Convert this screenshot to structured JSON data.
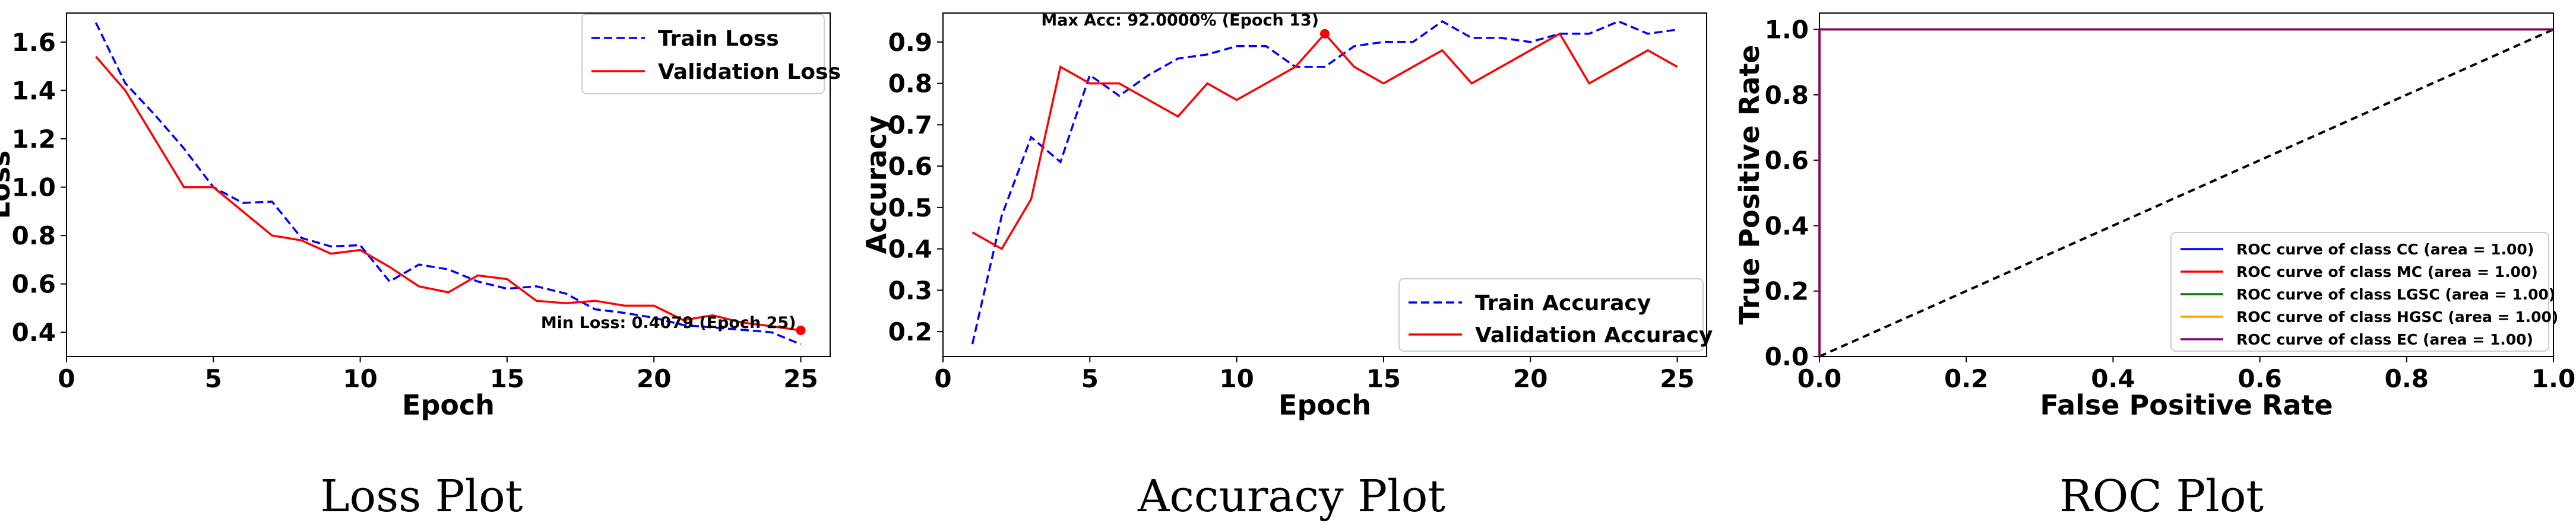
{
  "chart_data": [
    {
      "type": "line",
      "caption": "Loss Plot",
      "xlabel": "Epoch",
      "ylabel": "Loss",
      "xlim": [
        0,
        26
      ],
      "ylim": [
        0.3,
        1.72
      ],
      "xticks": [
        0,
        5,
        10,
        15,
        20,
        25
      ],
      "yticks": [
        0.4,
        0.6,
        0.8,
        1.0,
        1.2,
        1.4,
        1.6
      ],
      "x": [
        1,
        2,
        3,
        4,
        5,
        6,
        7,
        8,
        9,
        10,
        11,
        12,
        13,
        14,
        15,
        16,
        17,
        18,
        19,
        20,
        21,
        22,
        23,
        24,
        25
      ],
      "series": [
        {
          "name": "Train Loss",
          "color": "#0000ff",
          "dash": true,
          "values": [
            1.68,
            1.43,
            1.3,
            1.16,
            1.0,
            0.935,
            0.94,
            0.79,
            0.755,
            0.76,
            0.61,
            0.68,
            0.66,
            0.61,
            0.58,
            0.59,
            0.56,
            0.495,
            0.48,
            0.46,
            0.43,
            0.42,
            0.41,
            0.4,
            0.35
          ]
        },
        {
          "name": "Validation Loss",
          "color": "#ff0000",
          "dash": false,
          "values": [
            1.54,
            1.4,
            1.2,
            1.0,
            1.0,
            0.9,
            0.8,
            0.78,
            0.725,
            0.74,
            0.67,
            0.59,
            0.565,
            0.635,
            0.62,
            0.53,
            0.52,
            0.53,
            0.51,
            0.51,
            0.45,
            0.47,
            0.44,
            0.425,
            0.4079
          ]
        }
      ],
      "annotation": {
        "text": "Min Loss: 0.4079 (Epoch 25)",
        "x": 25,
        "y": 0.4079,
        "color": "#ff0000"
      },
      "legend": "top-right"
    },
    {
      "type": "line",
      "caption": "Accuracy Plot",
      "xlabel": "Epoch",
      "ylabel": "Accuracy",
      "xlim": [
        0,
        26
      ],
      "ylim": [
        0.14,
        0.97
      ],
      "xticks": [
        0,
        5,
        10,
        15,
        20,
        25
      ],
      "yticks": [
        0.2,
        0.3,
        0.4,
        0.5,
        0.6,
        0.7,
        0.8,
        0.9
      ],
      "x": [
        1,
        2,
        3,
        4,
        5,
        6,
        7,
        8,
        9,
        10,
        11,
        12,
        13,
        14,
        15,
        16,
        17,
        18,
        19,
        20,
        21,
        22,
        23,
        24,
        25
      ],
      "series": [
        {
          "name": "Train Accuracy",
          "color": "#0000ff",
          "dash": true,
          "values": [
            0.17,
            0.48,
            0.67,
            0.61,
            0.82,
            0.77,
            0.82,
            0.86,
            0.87,
            0.89,
            0.89,
            0.84,
            0.84,
            0.89,
            0.9,
            0.9,
            0.95,
            0.91,
            0.91,
            0.9,
            0.92,
            0.92,
            0.95,
            0.92,
            0.93
          ]
        },
        {
          "name": "Validation Accuracy",
          "color": "#ff0000",
          "dash": false,
          "values": [
            0.44,
            0.4,
            0.52,
            0.84,
            0.8,
            0.8,
            0.76,
            0.72,
            0.8,
            0.76,
            0.8,
            0.84,
            0.92,
            0.84,
            0.8,
            0.84,
            0.88,
            0.8,
            0.84,
            0.88,
            0.92,
            0.8,
            0.84,
            0.88,
            0.84
          ]
        }
      ],
      "annotation": {
        "text": "Max Acc: 92.0000% (Epoch 13)",
        "x": 13,
        "y": 0.92,
        "color": "#ff0000"
      },
      "legend": "lower-right"
    },
    {
      "type": "line",
      "caption": "ROC Plot",
      "xlabel": "False Positive Rate",
      "ylabel": "True Positive Rate",
      "xlim": [
        0,
        1
      ],
      "ylim": [
        0,
        1.05
      ],
      "xticks": [
        "0.0",
        "0.2",
        "0.4",
        "0.6",
        "0.8",
        "1.0"
      ],
      "yticks": [
        "0.0",
        "0.2",
        "0.4",
        "0.6",
        "0.8",
        "1.0"
      ],
      "series": [
        {
          "name": "ROC curve of class CC (area = 1.00)",
          "color": "#0000ff",
          "x": [
            0,
            0,
            1
          ],
          "y": [
            0,
            1,
            1
          ]
        },
        {
          "name": "ROC curve of class MC (area = 1.00)",
          "color": "#ff0000",
          "x": [
            0,
            0,
            1
          ],
          "y": [
            0,
            1,
            1
          ]
        },
        {
          "name": "ROC curve of class LGSC (area = 1.00)",
          "color": "#008000",
          "x": [
            0,
            0,
            1
          ],
          "y": [
            0,
            1,
            1
          ]
        },
        {
          "name": "ROC curve of class HGSC (area = 1.00)",
          "color": "#ffa500",
          "x": [
            0,
            0,
            1
          ],
          "y": [
            0,
            1,
            1
          ]
        },
        {
          "name": "ROC curve of class EC (area = 1.00)",
          "color": "#800080",
          "x": [
            0,
            0,
            1
          ],
          "y": [
            0,
            1,
            1
          ]
        }
      ],
      "diagonal": {
        "x": [
          0,
          1
        ],
        "y": [
          0,
          1
        ],
        "color": "#000000",
        "dash": true
      },
      "legend": "lower-right"
    }
  ]
}
